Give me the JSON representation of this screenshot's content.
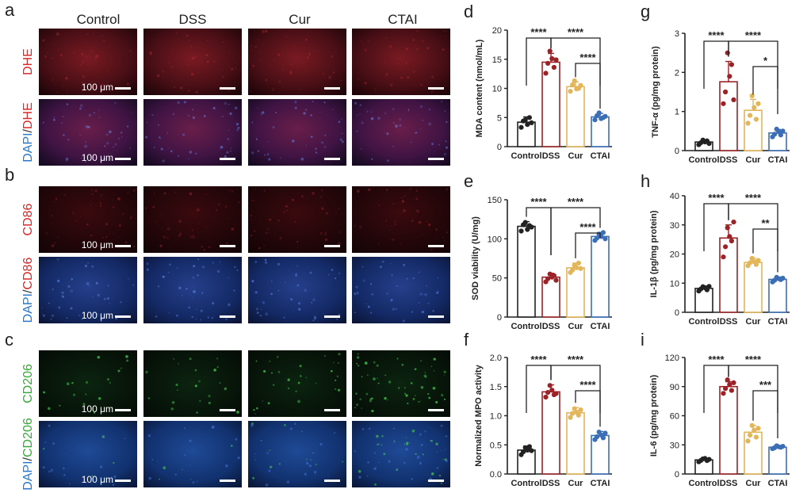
{
  "micrographs": {
    "columns": [
      "Control",
      "DSS",
      "Cur",
      "CTAI"
    ],
    "panel_letters": [
      "a",
      "b",
      "c"
    ],
    "scale_bar_label": "100 μm",
    "rows": [
      {
        "label_parts": [
          {
            "text": "DHE",
            "color": "#d42a2a"
          }
        ],
        "tone": "dhe",
        "show_scale_text": true
      },
      {
        "label_parts": [
          {
            "text": "DAPI",
            "color": "#2a78c8"
          },
          {
            "text": "/",
            "color": "#333333"
          },
          {
            "text": "DHE",
            "color": "#d42a2a"
          }
        ],
        "tone": "dhe-dapi",
        "show_scale_text": true
      },
      {
        "label_parts": [
          {
            "text": "CD86",
            "color": "#d42a2a"
          }
        ],
        "tone": "cd86",
        "show_scale_text": true
      },
      {
        "label_parts": [
          {
            "text": "DAPI",
            "color": "#2a78c8"
          },
          {
            "text": "/",
            "color": "#333333"
          },
          {
            "text": "CD86",
            "color": "#d42a2a"
          }
        ],
        "tone": "cd86-dapi",
        "show_scale_text": true
      },
      {
        "label_parts": [
          {
            "text": "CD206",
            "color": "#3aa83a"
          }
        ],
        "tone": "cd206",
        "show_scale_text": true
      },
      {
        "label_parts": [
          {
            "text": "DAPI",
            "color": "#2a78c8"
          },
          {
            "text": "/",
            "color": "#333333"
          },
          {
            "text": "CD206",
            "color": "#3aa83a"
          }
        ],
        "tone": "cd206-dapi",
        "show_scale_text": true
      }
    ]
  },
  "group_colors": [
    "#222222",
    "#9b2226",
    "#e3b65a",
    "#3b6eb5"
  ],
  "chart_data": [
    {
      "panel": "d",
      "type": "bar",
      "categories": [
        "Control",
        "DSS",
        "Cur",
        "CTAI"
      ],
      "ylabel": "MDA content (nmol/mL)",
      "ylim": [
        0,
        20
      ],
      "yticks": [
        "0",
        "5",
        "10",
        "15",
        "20"
      ],
      "values": [
        4.2,
        14.5,
        10.3,
        5.1
      ],
      "errors": [
        0.9,
        1.5,
        0.8,
        0.6
      ],
      "points": [
        [
          3.3,
          4.4,
          4.6,
          3.8,
          5.0,
          4.1
        ],
        [
          12.6,
          14.3,
          16.4,
          15.1,
          13.6,
          14.9
        ],
        [
          9.5,
          10.6,
          11.3,
          9.9,
          10.0,
          10.5
        ],
        [
          4.6,
          5.3,
          5.8,
          4.8,
          5.0,
          5.2
        ]
      ],
      "brackets": [
        {
          "from": 0,
          "to": 1,
          "label": "****",
          "level": 0
        },
        {
          "from": 1,
          "to": 3,
          "label": "****",
          "level": 0
        },
        {
          "from": 2,
          "to": 3,
          "label": "****",
          "level": 1
        }
      ]
    },
    {
      "panel": "e",
      "type": "bar",
      "categories": [
        "Control",
        "DSS",
        "Cur",
        "CTAI"
      ],
      "ylabel": "SOD viability (U/mg)",
      "ylim": [
        0,
        150
      ],
      "yticks": [
        "0",
        "50",
        "100",
        "150"
      ],
      "values": [
        116,
        51,
        63,
        103
      ],
      "errors": [
        6,
        5,
        6,
        5
      ],
      "points": [
        [
          110,
          118,
          121,
          112,
          117,
          115
        ],
        [
          45,
          49,
          55,
          51,
          53,
          47
        ],
        [
          57,
          60,
          66,
          63,
          69,
          62
        ],
        [
          98,
          101,
          106,
          103,
          108,
          100
        ]
      ],
      "brackets": [
        {
          "from": 0,
          "to": 1,
          "label": "****",
          "level": 0
        },
        {
          "from": 1,
          "to": 3,
          "label": "****",
          "level": 0
        },
        {
          "from": 2,
          "to": 3,
          "label": "****",
          "level": 1
        }
      ]
    },
    {
      "panel": "f",
      "type": "bar",
      "categories": [
        "Control",
        "DSS",
        "Cur",
        "CTAI"
      ],
      "ylabel": "Normalized MPO activity",
      "ylim": [
        0,
        2.0
      ],
      "yticks": [
        "0.0",
        "0.5",
        "1.0",
        "1.5",
        "2.0"
      ],
      "values": [
        0.41,
        1.41,
        1.05,
        0.66
      ],
      "errors": [
        0.07,
        0.12,
        0.09,
        0.07
      ],
      "points": [
        [
          0.33,
          0.38,
          0.45,
          0.41,
          0.47,
          0.4
        ],
        [
          1.32,
          1.4,
          1.52,
          1.44,
          1.36,
          1.38
        ],
        [
          0.97,
          1.04,
          1.12,
          1.06,
          1.01,
          1.1
        ],
        [
          0.59,
          0.64,
          0.72,
          0.67,
          0.62,
          0.7
        ]
      ],
      "brackets": [
        {
          "from": 0,
          "to": 1,
          "label": "****",
          "level": 0
        },
        {
          "from": 1,
          "to": 3,
          "label": "****",
          "level": 0
        },
        {
          "from": 2,
          "to": 3,
          "label": "****",
          "level": 1
        }
      ]
    },
    {
      "panel": "g",
      "type": "bar",
      "categories": [
        "Control",
        "DSS",
        "Cur",
        "CTAI"
      ],
      "ylabel": "TNF-α (pg/mg protein)",
      "ylim": [
        0,
        3
      ],
      "yticks": [
        "0",
        "1",
        "2",
        "3"
      ],
      "values": [
        0.22,
        1.76,
        1.03,
        0.45
      ],
      "errors": [
        0.06,
        0.52,
        0.28,
        0.09
      ],
      "points": [
        [
          0.15,
          0.2,
          0.27,
          0.22,
          0.25,
          0.18
        ],
        [
          1.2,
          1.5,
          2.5,
          1.9,
          2.2,
          1.3
        ],
        [
          0.7,
          0.9,
          1.4,
          1.1,
          0.8,
          1.2
        ],
        [
          0.35,
          0.42,
          0.55,
          0.48,
          0.4,
          0.5
        ]
      ],
      "brackets": [
        {
          "from": 0,
          "to": 1,
          "label": "****",
          "level": 0
        },
        {
          "from": 1,
          "to": 3,
          "label": "****",
          "level": 0
        },
        {
          "from": 2,
          "to": 3,
          "label": "*",
          "level": 1
        }
      ]
    },
    {
      "panel": "h",
      "type": "bar",
      "categories": [
        "Control",
        "DSS",
        "Cur",
        "CTAI"
      ],
      "ylabel": "IL-1β (pg/mg protein)",
      "ylim": [
        0,
        40
      ],
      "yticks": [
        "0",
        "10",
        "20",
        "30",
        "40"
      ],
      "values": [
        8.2,
        25.5,
        17.1,
        11.3
      ],
      "errors": [
        0.8,
        4.5,
        1.5,
        0.8
      ],
      "points": [
        [
          7.3,
          8.0,
          8.8,
          8.4,
          7.7,
          8.9
        ],
        [
          19.0,
          22.5,
          29.0,
          26.0,
          24.5,
          31.0
        ],
        [
          16.0,
          17.0,
          18.5,
          17.4,
          16.4,
          17.8
        ],
        [
          10.4,
          11.0,
          12.0,
          11.5,
          11.2,
          11.7
        ]
      ],
      "brackets": [
        {
          "from": 0,
          "to": 1,
          "label": "****",
          "level": 0
        },
        {
          "from": 1,
          "to": 3,
          "label": "****",
          "level": 0
        },
        {
          "from": 2,
          "to": 3,
          "label": "**",
          "level": 1
        }
      ]
    },
    {
      "panel": "i",
      "type": "bar",
      "categories": [
        "Control",
        "DSS",
        "Cur",
        "CTAI"
      ],
      "ylabel": "IL-6 (pg/mg protein)",
      "ylim": [
        0,
        120
      ],
      "yticks": [
        "0",
        "30",
        "60",
        "90",
        "120"
      ],
      "values": [
        14.5,
        90,
        43,
        27.5
      ],
      "errors": [
        1.5,
        5,
        7,
        1.5
      ],
      "points": [
        [
          12.5,
          14.0,
          15.5,
          16.0,
          13.8,
          15.0
        ],
        [
          83,
          88,
          97,
          92,
          86,
          94
        ],
        [
          34,
          40,
          50,
          45,
          38,
          47
        ],
        [
          26,
          27,
          29,
          28,
          27.5,
          28.5
        ]
      ],
      "brackets": [
        {
          "from": 0,
          "to": 1,
          "label": "****",
          "level": 0
        },
        {
          "from": 1,
          "to": 3,
          "label": "****",
          "level": 0
        },
        {
          "from": 2,
          "to": 3,
          "label": "***",
          "level": 1
        }
      ]
    }
  ]
}
